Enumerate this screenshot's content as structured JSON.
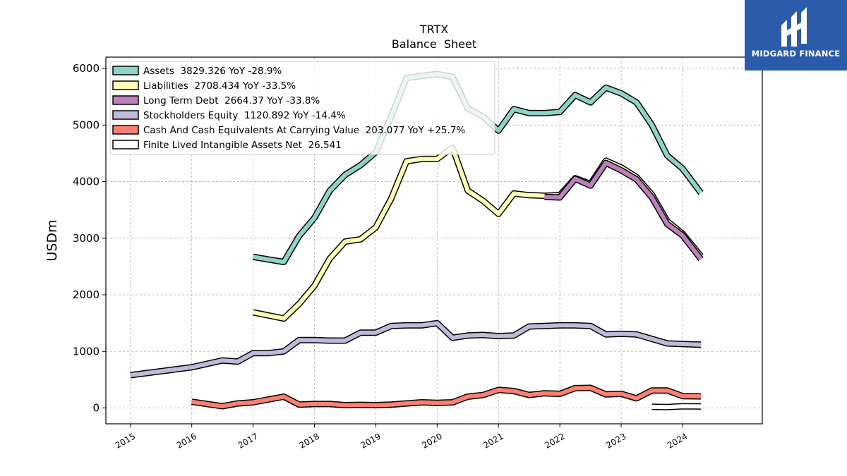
{
  "brand": {
    "name": "MIDGARD FINANCE",
    "bg_color": "#2d5bab"
  },
  "chart_data": {
    "type": "line",
    "title": "TRTX",
    "subtitle": "Balance  Sheet",
    "xlabel": "",
    "ylabel": "USDm",
    "xlim": [
      2014.6,
      2025.3
    ],
    "ylim": [
      -280,
      6200
    ],
    "x_ticks": [
      "2015",
      "2016",
      "2017",
      "2018",
      "2019",
      "2020",
      "2021",
      "2022",
      "2023",
      "2024"
    ],
    "y_ticks": [
      0,
      1000,
      2000,
      3000,
      4000,
      5000,
      6000
    ],
    "grid": true,
    "legend_position": "top-left",
    "series": [
      {
        "name": "Assets",
        "legend": "Assets  3829.326 YoY -28.9%",
        "color": "#8dd3c7",
        "points": [
          [
            2017.0,
            2670
          ],
          [
            2017.5,
            2580
          ],
          [
            2017.75,
            3040
          ],
          [
            2018.0,
            3360
          ],
          [
            2018.25,
            3840
          ],
          [
            2018.5,
            4120
          ],
          [
            2018.75,
            4290
          ],
          [
            2019.0,
            4520
          ],
          [
            2019.25,
            5150
          ],
          [
            2019.5,
            5830
          ],
          [
            2019.75,
            5870
          ],
          [
            2020.0,
            5900
          ],
          [
            2020.25,
            5850
          ],
          [
            2020.5,
            5290
          ],
          [
            2020.75,
            5150
          ],
          [
            2021.0,
            4900
          ],
          [
            2021.25,
            5280
          ],
          [
            2021.5,
            5210
          ],
          [
            2021.75,
            5210
          ],
          [
            2022.0,
            5230
          ],
          [
            2022.25,
            5530
          ],
          [
            2022.5,
            5400
          ],
          [
            2022.75,
            5660
          ],
          [
            2023.0,
            5560
          ],
          [
            2023.25,
            5400
          ],
          [
            2023.5,
            5000
          ],
          [
            2023.75,
            4460
          ],
          [
            2024.0,
            4230
          ],
          [
            2024.3,
            3800
          ]
        ]
      },
      {
        "name": "Liabilities",
        "legend": "Liabilities  2708.434 YoY -33.5%",
        "color": "#ffffb3",
        "points": [
          [
            2017.0,
            1690
          ],
          [
            2017.5,
            1580
          ],
          [
            2017.75,
            1840
          ],
          [
            2018.0,
            2160
          ],
          [
            2018.25,
            2640
          ],
          [
            2018.5,
            2940
          ],
          [
            2018.75,
            2980
          ],
          [
            2019.0,
            3190
          ],
          [
            2019.25,
            3700
          ],
          [
            2019.5,
            4360
          ],
          [
            2019.75,
            4400
          ],
          [
            2020.0,
            4400
          ],
          [
            2020.25,
            4600
          ],
          [
            2020.5,
            3840
          ],
          [
            2020.75,
            3660
          ],
          [
            2021.0,
            3430
          ],
          [
            2021.25,
            3790
          ],
          [
            2021.5,
            3760
          ],
          [
            2021.75,
            3750
          ],
          [
            2022.0,
            3760
          ],
          [
            2022.25,
            4060
          ],
          [
            2022.5,
            3960
          ],
          [
            2022.75,
            4370
          ],
          [
            2023.0,
            4250
          ],
          [
            2023.25,
            4080
          ],
          [
            2023.5,
            3770
          ],
          [
            2023.75,
            3300
          ],
          [
            2024.0,
            3080
          ],
          [
            2024.3,
            2680
          ]
        ]
      },
      {
        "name": "Long Term Debt",
        "legend": "Long Term Debt  2664.37 YoY -33.8%",
        "color": "#bc80bd",
        "points": [
          [
            2021.75,
            3730
          ],
          [
            2022.0,
            3720
          ],
          [
            2022.25,
            4050
          ],
          [
            2022.5,
            3930
          ],
          [
            2022.75,
            4330
          ],
          [
            2023.0,
            4200
          ],
          [
            2023.25,
            4040
          ],
          [
            2023.5,
            3720
          ],
          [
            2023.75,
            3250
          ],
          [
            2024.0,
            3050
          ],
          [
            2024.3,
            2630
          ]
        ]
      },
      {
        "name": "Stockholders Equity",
        "legend": "Stockholders Equity  1120.892 YoY -14.4%",
        "color": "#bebada",
        "points": [
          [
            2015.0,
            580
          ],
          [
            2016.0,
            720
          ],
          [
            2016.5,
            840
          ],
          [
            2016.75,
            820
          ],
          [
            2017.0,
            970
          ],
          [
            2017.25,
            970
          ],
          [
            2017.5,
            1000
          ],
          [
            2017.75,
            1200
          ],
          [
            2018.0,
            1200
          ],
          [
            2018.25,
            1190
          ],
          [
            2018.5,
            1190
          ],
          [
            2018.75,
            1330
          ],
          [
            2019.0,
            1330
          ],
          [
            2019.25,
            1450
          ],
          [
            2019.5,
            1460
          ],
          [
            2019.75,
            1460
          ],
          [
            2020.0,
            1500
          ],
          [
            2020.25,
            1240
          ],
          [
            2020.5,
            1280
          ],
          [
            2020.75,
            1290
          ],
          [
            2021.0,
            1270
          ],
          [
            2021.25,
            1280
          ],
          [
            2021.5,
            1440
          ],
          [
            2021.75,
            1450
          ],
          [
            2022.0,
            1460
          ],
          [
            2022.25,
            1460
          ],
          [
            2022.5,
            1450
          ],
          [
            2022.75,
            1300
          ],
          [
            2023.0,
            1310
          ],
          [
            2023.25,
            1300
          ],
          [
            2023.5,
            1220
          ],
          [
            2023.75,
            1140
          ],
          [
            2024.0,
            1130
          ],
          [
            2024.3,
            1120
          ]
        ]
      },
      {
        "name": "Cash And Cash Equivalents At Carrying Value",
        "legend": "Cash And Cash Equivalents At Carrying Value  203.077 YoY +25.7%",
        "color": "#fb8072",
        "points": [
          [
            2016.0,
            110
          ],
          [
            2016.5,
            30
          ],
          [
            2016.75,
            80
          ],
          [
            2017.0,
            100
          ],
          [
            2017.25,
            150
          ],
          [
            2017.5,
            200
          ],
          [
            2017.75,
            60
          ],
          [
            2018.0,
            70
          ],
          [
            2018.25,
            70
          ],
          [
            2018.5,
            50
          ],
          [
            2018.75,
            55
          ],
          [
            2019.0,
            50
          ],
          [
            2019.25,
            60
          ],
          [
            2019.5,
            80
          ],
          [
            2019.75,
            100
          ],
          [
            2020.0,
            90
          ],
          [
            2020.25,
            100
          ],
          [
            2020.5,
            200
          ],
          [
            2020.75,
            230
          ],
          [
            2021.0,
            320
          ],
          [
            2021.25,
            300
          ],
          [
            2021.5,
            230
          ],
          [
            2021.75,
            260
          ],
          [
            2022.0,
            250
          ],
          [
            2022.25,
            350
          ],
          [
            2022.5,
            355
          ],
          [
            2022.75,
            240
          ],
          [
            2023.0,
            250
          ],
          [
            2023.25,
            170
          ],
          [
            2023.5,
            310
          ],
          [
            2023.75,
            310
          ],
          [
            2024.0,
            210
          ],
          [
            2024.3,
            205
          ]
        ]
      },
      {
        "name": "Finite Lived Intangible Assets Net",
        "legend": "Finite Lived Intangible Assets Net  26.541",
        "color": "#ffffff",
        "points": [
          [
            2023.5,
            20
          ],
          [
            2023.75,
            15
          ],
          [
            2024.0,
            30
          ],
          [
            2024.3,
            27
          ]
        ]
      }
    ]
  }
}
